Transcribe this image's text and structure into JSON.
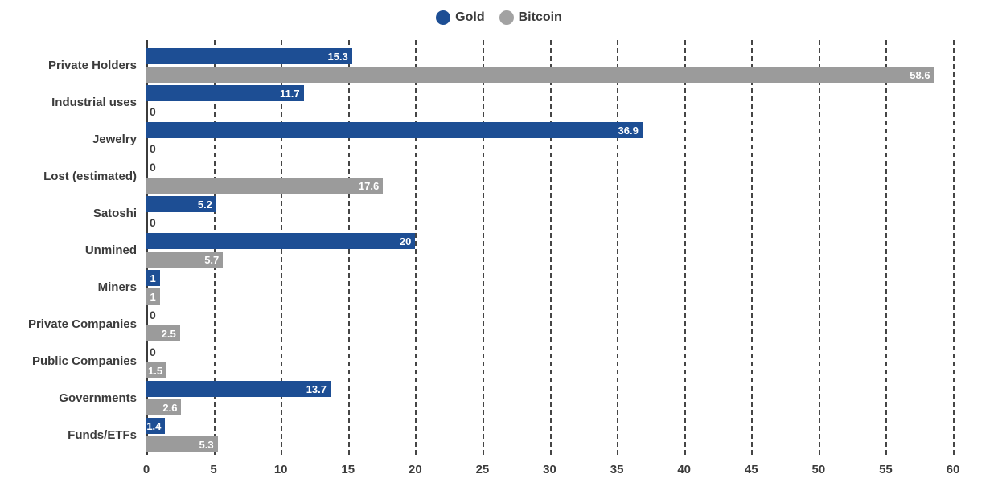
{
  "page": {
    "background": "#ffffff"
  },
  "legend": {
    "items": [
      {
        "label": "Gold",
        "color": "#1d4e94"
      },
      {
        "label": "Bitcoin",
        "color": "#a2a2a2"
      }
    ]
  },
  "chart_data": {
    "type": "bar",
    "orientation": "horizontal",
    "title": "",
    "xlabel": "",
    "ylabel": "",
    "categories": [
      "Private Holders",
      "Industrial uses",
      "Jewelry",
      "Lost (estimated)",
      "Satoshi",
      "Unmined",
      "Miners",
      "Private Companies",
      "Public Companies",
      "Governments",
      "Funds/ETFs"
    ],
    "series": [
      {
        "name": "Gold",
        "color": "#1d4e94",
        "values": [
          15.3,
          11.7,
          36.9,
          0,
          5.2,
          20,
          1,
          0,
          0,
          13.7,
          1.4
        ]
      },
      {
        "name": "Bitcoin",
        "color": "#9b9b9b",
        "values": [
          58.6,
          0,
          0,
          17.6,
          0,
          5.7,
          1,
          2.5,
          1.5,
          2.6,
          5.3
        ]
      }
    ],
    "xlim": [
      0,
      60
    ],
    "xticks": [
      0,
      5,
      10,
      15,
      20,
      25,
      30,
      35,
      40,
      45,
      50,
      55,
      60
    ],
    "grid": "vertical dashed, solid line at 0",
    "legend_position": "top-center",
    "value_labels": "inside bar end in white; zero values shown as dark 0 at axis"
  },
  "colors": {
    "text": "#3b3b3b",
    "gridline": "#454545",
    "axis_line": "#3b3b3b",
    "value_label": "#ffffff"
  }
}
